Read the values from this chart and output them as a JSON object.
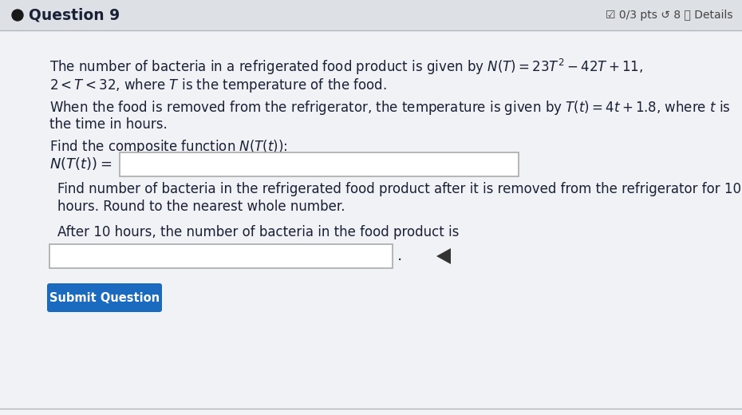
{
  "bg_color": "#c8cdd4",
  "content_bg": "#f0f2f5",
  "header_bg": "#dde0e5",
  "title": "Question 9",
  "header_right": "☑ 0/3 pts ↺ 8 ⓘ Details",
  "line1": "The number of bacteria in a refrigerated food product is given by $N(T) = 23T^2 - 42T + 11$,",
  "line2": "$2 < T < 32$, where $T$ is the temperature of the food.",
  "line3": "When the food is removed from the refrigerator, the temperature is given by $T(t) = 4t + 1.8$, where $t$ is",
  "line4": "the time in hours.",
  "line5": "Find the composite function $N(T(t))$:",
  "line6_label": "$N(T(t)) =$",
  "line7": "Find number of bacteria in the refrigerated food product after it is removed from the refrigerator for 10",
  "line8": "hours. Round to the nearest whole number.",
  "line9": "After 10 hours, the number of bacteria in the food product is",
  "button_text": "Submit Question",
  "button_color": "#1a6bbf",
  "button_text_color": "#ffffff",
  "text_color": "#1a2035",
  "input_box_color": "#ffffff",
  "input_box_border": "#aaaaaa",
  "header_line_color": "#b0b5be",
  "font_size_body": 12.0,
  "font_size_title": 13.5
}
